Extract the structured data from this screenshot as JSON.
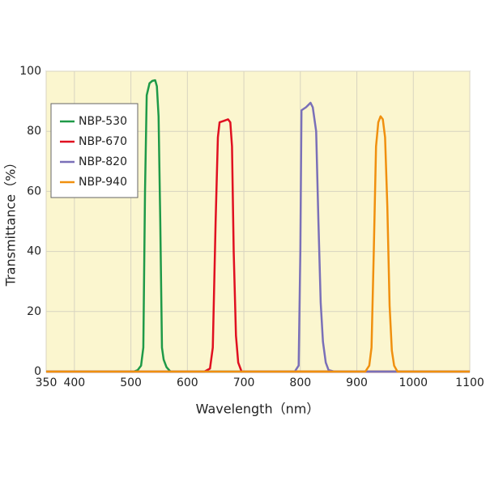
{
  "chart_data": {
    "type": "line",
    "x_label": "Wavelength（nm）",
    "y_label": "Transmittance（%）",
    "xlim": [
      350,
      1100
    ],
    "xticks": [
      350,
      400,
      500,
      600,
      700,
      800,
      900,
      1000,
      1100
    ],
    "ylim": [
      0,
      100
    ],
    "yticks": [
      0,
      20,
      40,
      60,
      80,
      100
    ],
    "grid": true,
    "legend": "upper left",
    "background": "#fbf6cf",
    "series": [
      {
        "name": "NBP-530",
        "color": "#1f9a48",
        "x": [
          350,
          505,
          512,
          518,
          522,
          525,
          528,
          533,
          538,
          543,
          546,
          549,
          552,
          555,
          558,
          563,
          570,
          1100
        ],
        "values": [
          0,
          0,
          0.5,
          2,
          8,
          60,
          92,
          96,
          96.8,
          97,
          95,
          85,
          50,
          8,
          4,
          1.5,
          0,
          0
        ]
      },
      {
        "name": "NBP-670",
        "color": "#e01020",
        "x": [
          350,
          630,
          640,
          645,
          650,
          654,
          657,
          665,
          672,
          676,
          679,
          682,
          686,
          690,
          696,
          1100
        ],
        "values": [
          0,
          0,
          1,
          8,
          50,
          78,
          83,
          83.5,
          84,
          83,
          75,
          40,
          12,
          3,
          0,
          0
        ]
      },
      {
        "name": "NBP-820",
        "color": "#7a70b8",
        "x": [
          350,
          790,
          797,
          800,
          802,
          810,
          818,
          822,
          828,
          832,
          836,
          840,
          845,
          850,
          860,
          1100
        ],
        "values": [
          0,
          0,
          2,
          40,
          87,
          88,
          89.5,
          88,
          80,
          50,
          23,
          10,
          3,
          0.5,
          0,
          0
        ]
      },
      {
        "name": "NBP-940",
        "color": "#f0900f",
        "x": [
          350,
          915,
          922,
          926,
          930,
          934,
          938,
          942,
          946,
          950,
          954,
          958,
          962,
          966,
          972,
          1100
        ],
        "values": [
          0,
          0,
          2,
          8,
          40,
          75,
          83,
          85,
          84,
          78,
          55,
          22,
          7,
          2,
          0,
          0
        ]
      }
    ]
  }
}
